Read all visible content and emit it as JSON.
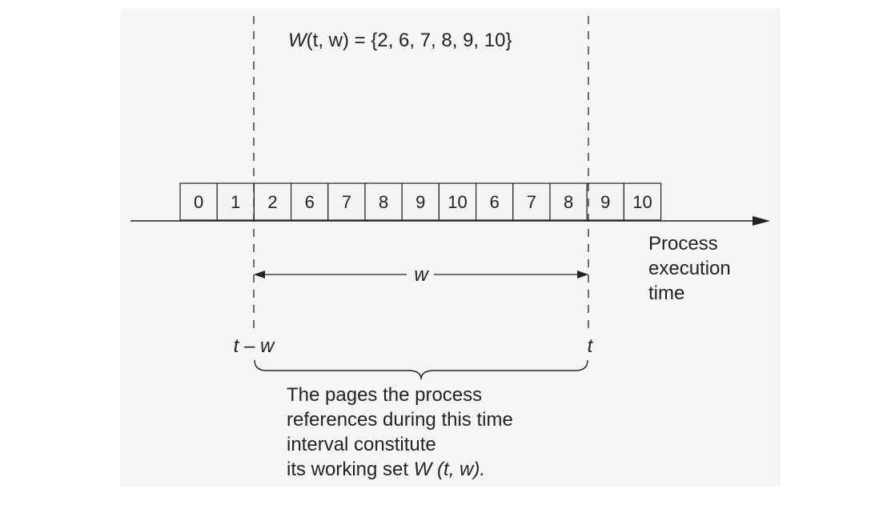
{
  "formula": {
    "w_symbol": "W",
    "args": "(t, w) = {2, 6, 7, 8, 9, 10}"
  },
  "pages": [
    "0",
    "1",
    "2",
    "6",
    "7",
    "8",
    "9",
    "10",
    "6",
    "7",
    "8",
    "9",
    "10"
  ],
  "axis_label": {
    "line1": "Process",
    "line2": "execution",
    "line3": "time"
  },
  "window_label": "w",
  "left_marker": "t – w",
  "right_marker": "t",
  "caption": {
    "line1": "The pages the process",
    "line2": "references during this time",
    "line3": "interval constitute",
    "line4_prefix": "its working set ",
    "line4_symbol": "W",
    "line4_args": " (t, w)."
  },
  "colors": {
    "ink": "#222222",
    "cell_fill": "#f4f4f4",
    "panel": "#f6f6f6"
  }
}
